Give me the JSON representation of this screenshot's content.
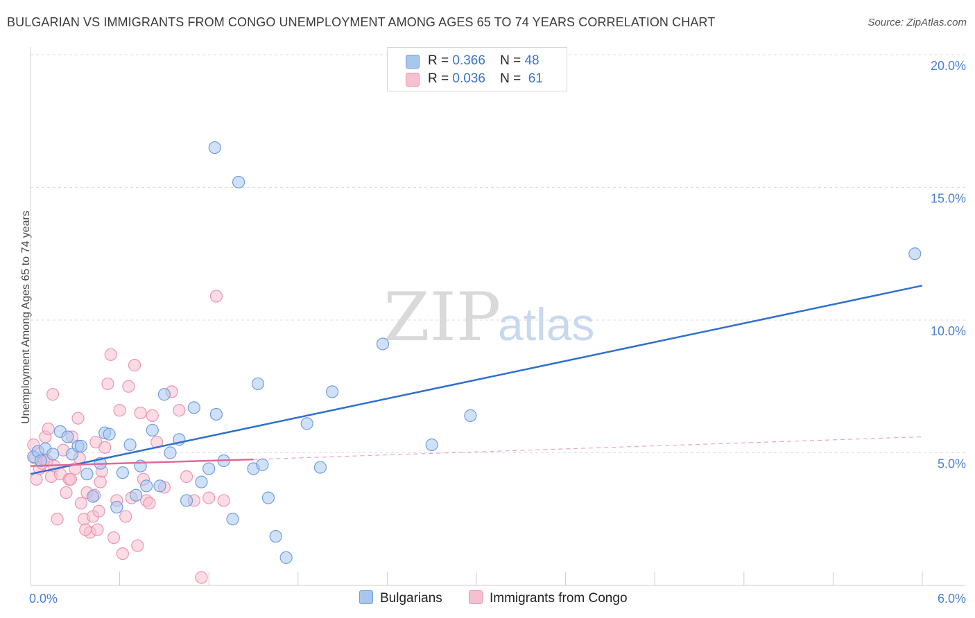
{
  "title": "BULGARIAN VS IMMIGRANTS FROM CONGO UNEMPLOYMENT AMONG AGES 65 TO 74 YEARS CORRELATION CHART",
  "source": "Source: ZipAtlas.com",
  "watermark": {
    "zip": "ZIP",
    "atlas": "atlas"
  },
  "legend": {
    "rows": [
      {
        "r_label": "R =",
        "r_value": "0.366",
        "n_label": "N =",
        "n_value": "48"
      },
      {
        "r_label": "R =",
        "r_value": "0.036",
        "n_label": "N =",
        "n_value": "61"
      }
    ]
  },
  "bottom_legend": {
    "bulgarians": "Bulgarians",
    "congo": "Immigrants from Congo"
  },
  "colors": {
    "blue_fill": "#a9c6ee",
    "blue_stroke": "#6f9ee0",
    "blue_line": "#2f6fcf",
    "pink_fill": "#f6c0d0",
    "pink_stroke": "#ee94b0",
    "pink_line": "#e0689a",
    "grid": "#dddddd",
    "tick_text": "#4a7fd4"
  },
  "chart_data": {
    "type": "scatter",
    "xlabel": "",
    "ylabel": "Unemployment Among Ages 65 to 74 years",
    "xlim": [
      0,
      6.0
    ],
    "ylim": [
      0,
      20.0
    ],
    "x_tick_labels": [
      {
        "value": 0,
        "label": "0.0%"
      },
      {
        "value": 6.0,
        "label": "6.0%"
      }
    ],
    "y_tick_labels": [
      {
        "value": 5,
        "label": "5.0%"
      },
      {
        "value": 10,
        "label": "10.0%"
      },
      {
        "value": 15,
        "label": "15.0%"
      },
      {
        "value": 20,
        "label": "20.0%"
      }
    ],
    "series": [
      {
        "name": "Bulgarians",
        "r": 0.366,
        "n": 48,
        "trend": {
          "x1": 0.0,
          "y1": 4.2,
          "x2": 6.0,
          "y2": 11.3
        },
        "points": [
          [
            0.02,
            4.85
          ],
          [
            0.05,
            5.05
          ],
          [
            0.07,
            4.7
          ],
          [
            0.1,
            5.15
          ],
          [
            0.15,
            4.95
          ],
          [
            0.2,
            5.8
          ],
          [
            0.25,
            5.6
          ],
          [
            0.28,
            4.95
          ],
          [
            0.32,
            5.25
          ],
          [
            0.34,
            5.25
          ],
          [
            0.38,
            4.2
          ],
          [
            0.42,
            3.35
          ],
          [
            0.47,
            4.6
          ],
          [
            0.5,
            5.75
          ],
          [
            0.53,
            5.7
          ],
          [
            0.58,
            2.95
          ],
          [
            0.62,
            4.25
          ],
          [
            0.67,
            5.3
          ],
          [
            0.71,
            3.4
          ],
          [
            0.74,
            4.5
          ],
          [
            0.78,
            3.75
          ],
          [
            0.82,
            5.85
          ],
          [
            0.87,
            3.75
          ],
          [
            0.9,
            7.2
          ],
          [
            0.94,
            5.0
          ],
          [
            1.0,
            5.5
          ],
          [
            1.05,
            3.2
          ],
          [
            1.1,
            6.7
          ],
          [
            1.15,
            3.9
          ],
          [
            1.2,
            4.4
          ],
          [
            1.25,
            6.45
          ],
          [
            1.3,
            4.7
          ],
          [
            1.36,
            2.5
          ],
          [
            1.4,
            15.2
          ],
          [
            1.5,
            4.4
          ],
          [
            1.53,
            7.6
          ],
          [
            1.56,
            4.55
          ],
          [
            1.6,
            3.3
          ],
          [
            1.65,
            1.85
          ],
          [
            1.72,
            1.05
          ],
          [
            1.86,
            6.1
          ],
          [
            1.95,
            4.45
          ],
          [
            2.03,
            7.3
          ],
          [
            2.37,
            9.1
          ],
          [
            2.7,
            5.3
          ],
          [
            2.96,
            6.4
          ],
          [
            5.95,
            12.5
          ],
          [
            1.24,
            16.5
          ]
        ]
      },
      {
        "name": "Immigrants from Congo",
        "r": 0.036,
        "n": 61,
        "trend": {
          "x1": 0.0,
          "y1": 4.5,
          "x2": 1.5,
          "y2": 4.75
        },
        "trend_extended": {
          "x1": 1.5,
          "y1": 4.75,
          "x2": 6.0,
          "y2": 5.6
        },
        "points": [
          [
            0.02,
            5.3
          ],
          [
            0.03,
            4.8
          ],
          [
            0.04,
            4.0
          ],
          [
            0.06,
            4.4
          ],
          [
            0.08,
            4.6
          ],
          [
            0.1,
            5.6
          ],
          [
            0.12,
            5.9
          ],
          [
            0.14,
            4.1
          ],
          [
            0.16,
            4.5
          ],
          [
            0.18,
            2.5
          ],
          [
            0.2,
            4.2
          ],
          [
            0.22,
            5.1
          ],
          [
            0.24,
            3.5
          ],
          [
            0.26,
            4.0
          ],
          [
            0.28,
            5.6
          ],
          [
            0.3,
            4.4
          ],
          [
            0.32,
            6.3
          ],
          [
            0.34,
            3.1
          ],
          [
            0.36,
            2.5
          ],
          [
            0.38,
            3.5
          ],
          [
            0.4,
            2.0
          ],
          [
            0.42,
            2.6
          ],
          [
            0.44,
            5.4
          ],
          [
            0.46,
            2.8
          ],
          [
            0.48,
            4.3
          ],
          [
            0.5,
            5.2
          ],
          [
            0.52,
            7.6
          ],
          [
            0.54,
            8.7
          ],
          [
            0.56,
            1.8
          ],
          [
            0.58,
            3.2
          ],
          [
            0.6,
            6.6
          ],
          [
            0.62,
            1.2
          ],
          [
            0.64,
            2.6
          ],
          [
            0.66,
            7.5
          ],
          [
            0.68,
            3.3
          ],
          [
            0.7,
            8.3
          ],
          [
            0.72,
            1.5
          ],
          [
            0.74,
            6.5
          ],
          [
            0.76,
            4.0
          ],
          [
            0.78,
            3.2
          ],
          [
            0.8,
            3.1
          ],
          [
            0.82,
            6.4
          ],
          [
            0.85,
            5.4
          ],
          [
            0.9,
            3.7
          ],
          [
            0.95,
            7.3
          ],
          [
            1.0,
            6.6
          ],
          [
            1.05,
            4.1
          ],
          [
            1.1,
            3.2
          ],
          [
            1.15,
            0.3
          ],
          [
            1.2,
            3.3
          ],
          [
            1.25,
            10.9
          ],
          [
            1.3,
            3.2
          ],
          [
            0.27,
            4.0
          ],
          [
            0.33,
            4.8
          ],
          [
            0.37,
            2.1
          ],
          [
            0.43,
            3.4
          ],
          [
            0.45,
            2.1
          ],
          [
            0.47,
            3.9
          ],
          [
            0.15,
            7.2
          ],
          [
            0.09,
            4.75
          ],
          [
            0.11,
            4.7
          ]
        ]
      }
    ]
  }
}
